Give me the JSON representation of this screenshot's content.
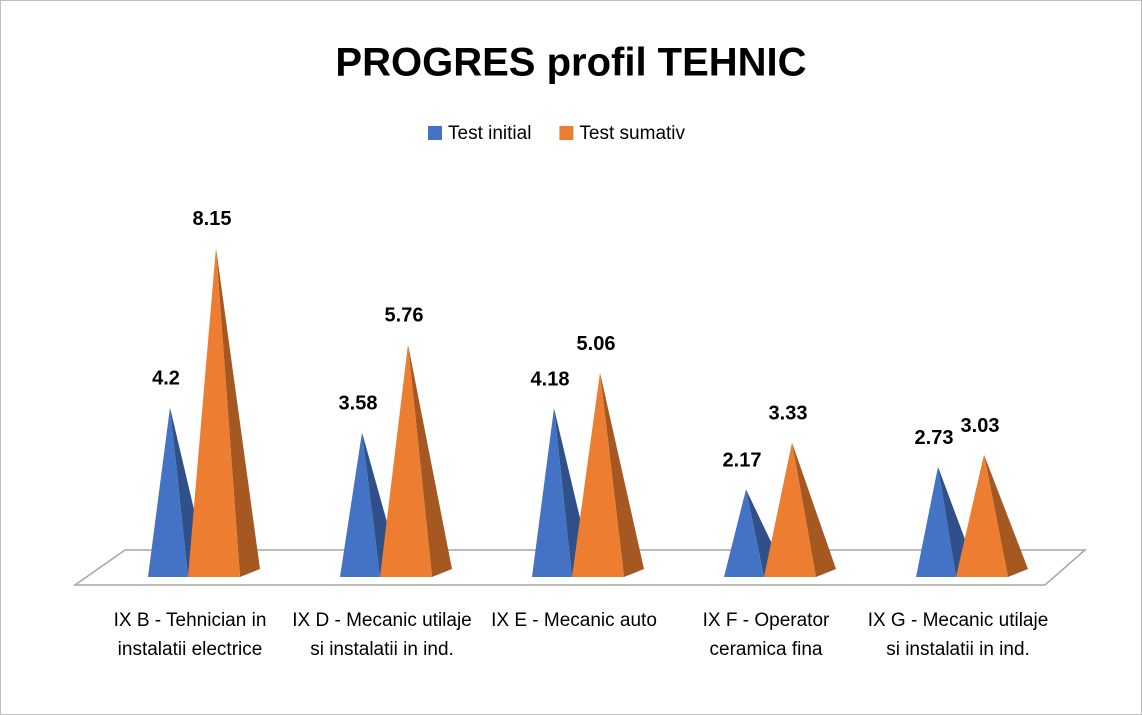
{
  "chart_data": {
    "type": "pyramid3d",
    "title": "PROGRES profil TEHNIC",
    "categories": [
      "IX B - Tehnician in instalatii electrice",
      "IX D - Mecanic utilaje si instalatii in ind.",
      "IX E - Mecanic auto",
      "IX F - Operator ceramica fina",
      "IX G - Mecanic utilaje si instalatii in ind."
    ],
    "series": [
      {
        "name": "Test initial",
        "color": "#4472c4",
        "values": [
          4.2,
          3.58,
          4.18,
          2.17,
          2.73
        ]
      },
      {
        "name": "Test sumativ",
        "color": "#ed7d31",
        "values": [
          8.15,
          5.76,
          5.06,
          3.33,
          3.03
        ]
      }
    ],
    "legend": "top"
  }
}
